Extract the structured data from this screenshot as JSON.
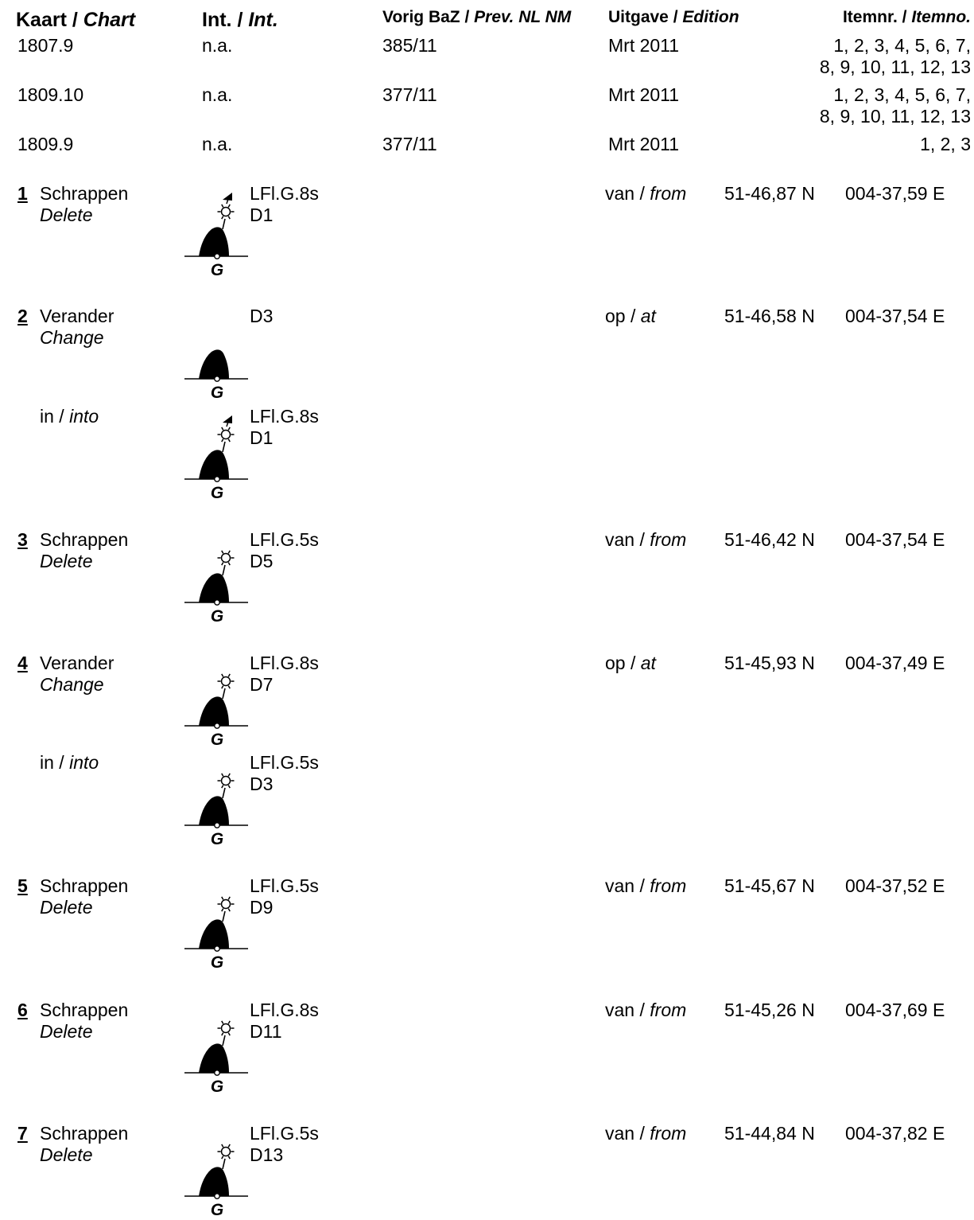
{
  "header": {
    "chart": {
      "nl": "Kaart",
      "en": "Chart"
    },
    "int": {
      "nl": "Int.",
      "en": "Int."
    },
    "prev": {
      "nl": "Vorig BaZ",
      "en": "Prev. NL NM"
    },
    "edition": {
      "nl": "Uitgave",
      "en": "Edition"
    },
    "itemno": {
      "nl": "Itemnr.",
      "en": "Itemno."
    },
    "sep": " / "
  },
  "charts": [
    {
      "chart": "1807.9",
      "int": "n.a.",
      "prev": "385/11",
      "edition": "Mrt 2011",
      "items": [
        "1, 2, 3, 4, 5, 6, 7,",
        "8, 9, 10, 11, 12, 13"
      ]
    },
    {
      "chart": "1809.10",
      "int": "n.a.",
      "prev": "377/11",
      "edition": "Mrt 2011",
      "items": [
        "1, 2, 3, 4, 5, 6, 7,",
        "8, 9, 10, 11, 12, 13"
      ]
    },
    {
      "chart": "1809.9",
      "int": "n.a.",
      "prev": "377/11",
      "edition": "Mrt 2011",
      "items": [
        "1, 2, 3"
      ]
    }
  ],
  "symbol_letter": "G",
  "into": {
    "nl": "in",
    "en": "into"
  },
  "entries": [
    {
      "num": "1",
      "action_nl": "Schrappen",
      "action_en": "Delete",
      "light": "LFl.G.8s",
      "buoy": "D1",
      "pos_nl": "van",
      "pos_en": "from",
      "lat": "51-46,87 N",
      "lon": "004-37,59 E"
    },
    {
      "num": "2",
      "action_nl": "Verander",
      "action_en": "Change",
      "light": "",
      "buoy": "D3",
      "pos_nl": "op",
      "pos_en": "at",
      "lat": "51-46,58 N",
      "lon": "004-37,54 E",
      "into_light": "LFl.G.8s",
      "into_buoy": "D1"
    },
    {
      "num": "3",
      "action_nl": "Schrappen",
      "action_en": "Delete",
      "light": "LFl.G.5s",
      "buoy": "D5",
      "pos_nl": "van",
      "pos_en": "from",
      "lat": "51-46,42 N",
      "lon": "004-37,54 E"
    },
    {
      "num": "4",
      "action_nl": "Verander",
      "action_en": "Change",
      "light": "LFl.G.8s",
      "buoy": "D7",
      "pos_nl": "op",
      "pos_en": "at",
      "lat": "51-45,93 N",
      "lon": "004-37,49 E",
      "into_light": "LFl.G.5s",
      "into_buoy": "D3"
    },
    {
      "num": "5",
      "action_nl": "Schrappen",
      "action_en": "Delete",
      "light": "LFl.G.5s",
      "buoy": "D9",
      "pos_nl": "van",
      "pos_en": "from",
      "lat": "51-45,67 N",
      "lon": "004-37,52 E"
    },
    {
      "num": "6",
      "action_nl": "Schrappen",
      "action_en": "Delete",
      "light": "LFl.G.8s",
      "buoy": "D11",
      "pos_nl": "van",
      "pos_en": "from",
      "lat": "51-45,26 N",
      "lon": "004-37,69 E"
    },
    {
      "num": "7",
      "action_nl": "Schrappen",
      "action_en": "Delete",
      "light": "LFl.G.5s",
      "buoy": "D13",
      "pos_nl": "van",
      "pos_en": "from",
      "lat": "51-44,84 N",
      "lon": "004-37,82 E"
    }
  ],
  "symbols": [
    {
      "name": "buoy-light-topmark-icon",
      "light": true,
      "topmark": true
    },
    {
      "name": "buoy-icon",
      "light": false,
      "topmark": false
    },
    {
      "name": "buoy-light-icon",
      "light": true,
      "topmark": false
    }
  ]
}
